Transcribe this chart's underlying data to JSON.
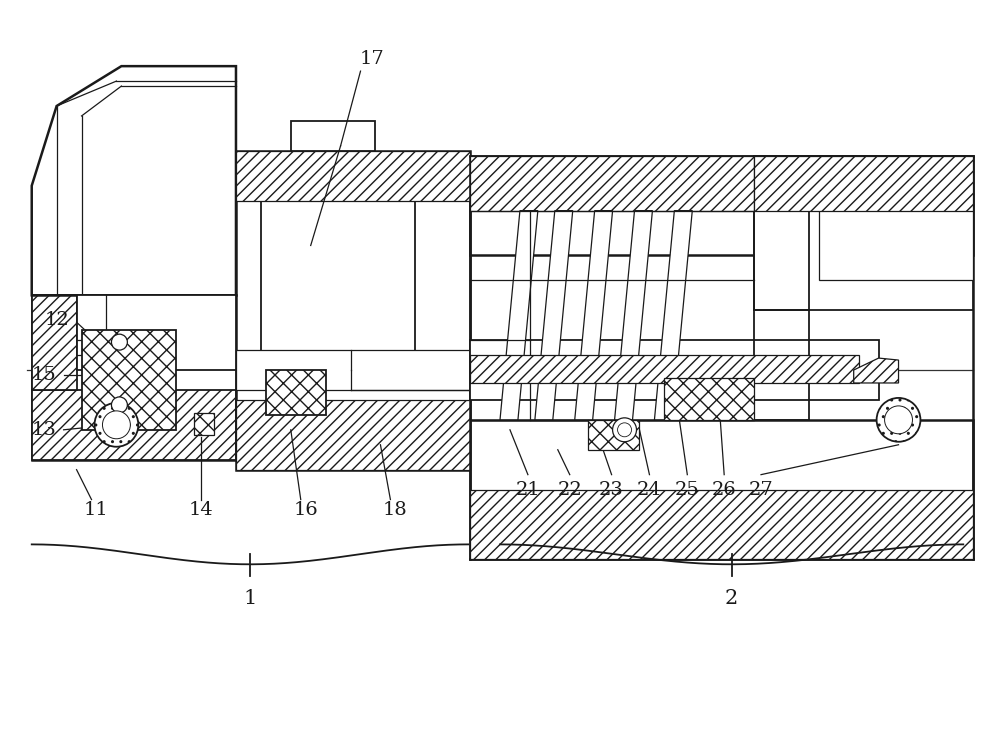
{
  "bg_color": "#ffffff",
  "line_color": "#1a1a1a",
  "fig_width": 10.0,
  "fig_height": 7.55,
  "dpi": 100
}
